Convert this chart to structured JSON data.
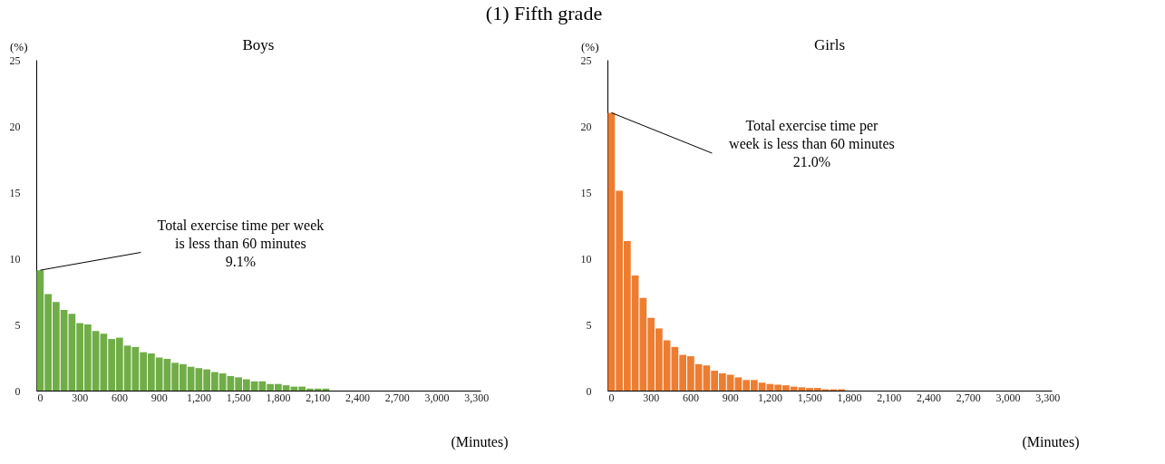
{
  "chart_data": [
    {
      "type": "bar",
      "title": "Boys",
      "xlabel": "(Minutes)",
      "ylabel": "(%)",
      "categories": [
        "0",
        null,
        null,
        null,
        null,
        "300",
        null,
        null,
        null,
        null,
        "600",
        null,
        null,
        null,
        null,
        "900",
        null,
        null,
        null,
        null,
        "1,200",
        null,
        null,
        null,
        null,
        "1,500",
        null,
        null,
        null,
        null,
        "1,800",
        null,
        null,
        null,
        null,
        "2,100",
        null,
        null,
        null,
        null,
        "2,400",
        null,
        null,
        null,
        null,
        "2,700",
        null,
        null,
        null,
        null,
        "3,000",
        null,
        null,
        null,
        null,
        "3,300"
      ],
      "values": [
        9.1,
        7.3,
        6.7,
        6.1,
        5.8,
        5.1,
        5.0,
        4.5,
        4.3,
        3.9,
        4.0,
        3.4,
        3.3,
        2.9,
        2.8,
        2.5,
        2.4,
        2.1,
        2.0,
        1.8,
        1.7,
        1.6,
        1.4,
        1.3,
        1.1,
        1.0,
        0.85,
        0.7,
        0.7,
        0.5,
        0.5,
        0.4,
        0.3,
        0.3,
        0.15,
        0.15,
        0.15,
        0,
        0,
        0,
        0,
        0,
        0,
        0,
        0,
        0,
        0,
        0,
        0,
        0,
        0,
        0,
        0,
        0,
        0,
        0
      ],
      "color": "#70ad47",
      "ylim": [
        0,
        25
      ],
      "yticks": [
        0,
        5,
        10,
        15,
        20,
        25
      ],
      "grid": false,
      "annotations": [
        "(1) Fifth grade",
        {
          "text": "Total exercise time per week\nis less than 60 minutes\n9.1%",
          "x": "0",
          "y": 9.1
        }
      ]
    },
    {
      "type": "bar",
      "title": "Girls",
      "xlabel": "(Minutes)",
      "ylabel": "(%)",
      "categories": [
        "0",
        null,
        null,
        null,
        null,
        "300",
        null,
        null,
        null,
        null,
        "600",
        null,
        null,
        null,
        null,
        "900",
        null,
        null,
        null,
        null,
        "1,200",
        null,
        null,
        null,
        null,
        "1,500",
        null,
        null,
        null,
        null,
        "1,800",
        null,
        null,
        null,
        null,
        "2,100",
        null,
        null,
        null,
        null,
        "2,400",
        null,
        null,
        null,
        null,
        "2,700",
        null,
        null,
        null,
        null,
        "3,000",
        null,
        null,
        null,
        null,
        "3,300"
      ],
      "values": [
        21.0,
        15.1,
        11.3,
        8.7,
        7.0,
        5.5,
        4.7,
        3.8,
        3.3,
        2.7,
        2.6,
        2.0,
        1.9,
        1.5,
        1.3,
        1.2,
        1.0,
        0.8,
        0.8,
        0.6,
        0.5,
        0.45,
        0.4,
        0.3,
        0.25,
        0.2,
        0.2,
        0.1,
        0.1,
        0.1,
        0,
        0,
        0,
        0,
        0,
        0,
        0,
        0,
        0,
        0,
        0,
        0,
        0,
        0,
        0,
        0,
        0,
        0,
        0,
        0,
        0,
        0,
        0,
        0,
        0,
        0
      ],
      "color": "#ed7d31",
      "ylim": [
        0,
        25
      ],
      "yticks": [
        0,
        5,
        10,
        15,
        20,
        25
      ],
      "grid": false,
      "annotations": [
        {
          "text": "Total exercise time per\nweek is less than 60 minutes\n21.0%",
          "x": "0",
          "y": 21.0
        }
      ]
    }
  ]
}
